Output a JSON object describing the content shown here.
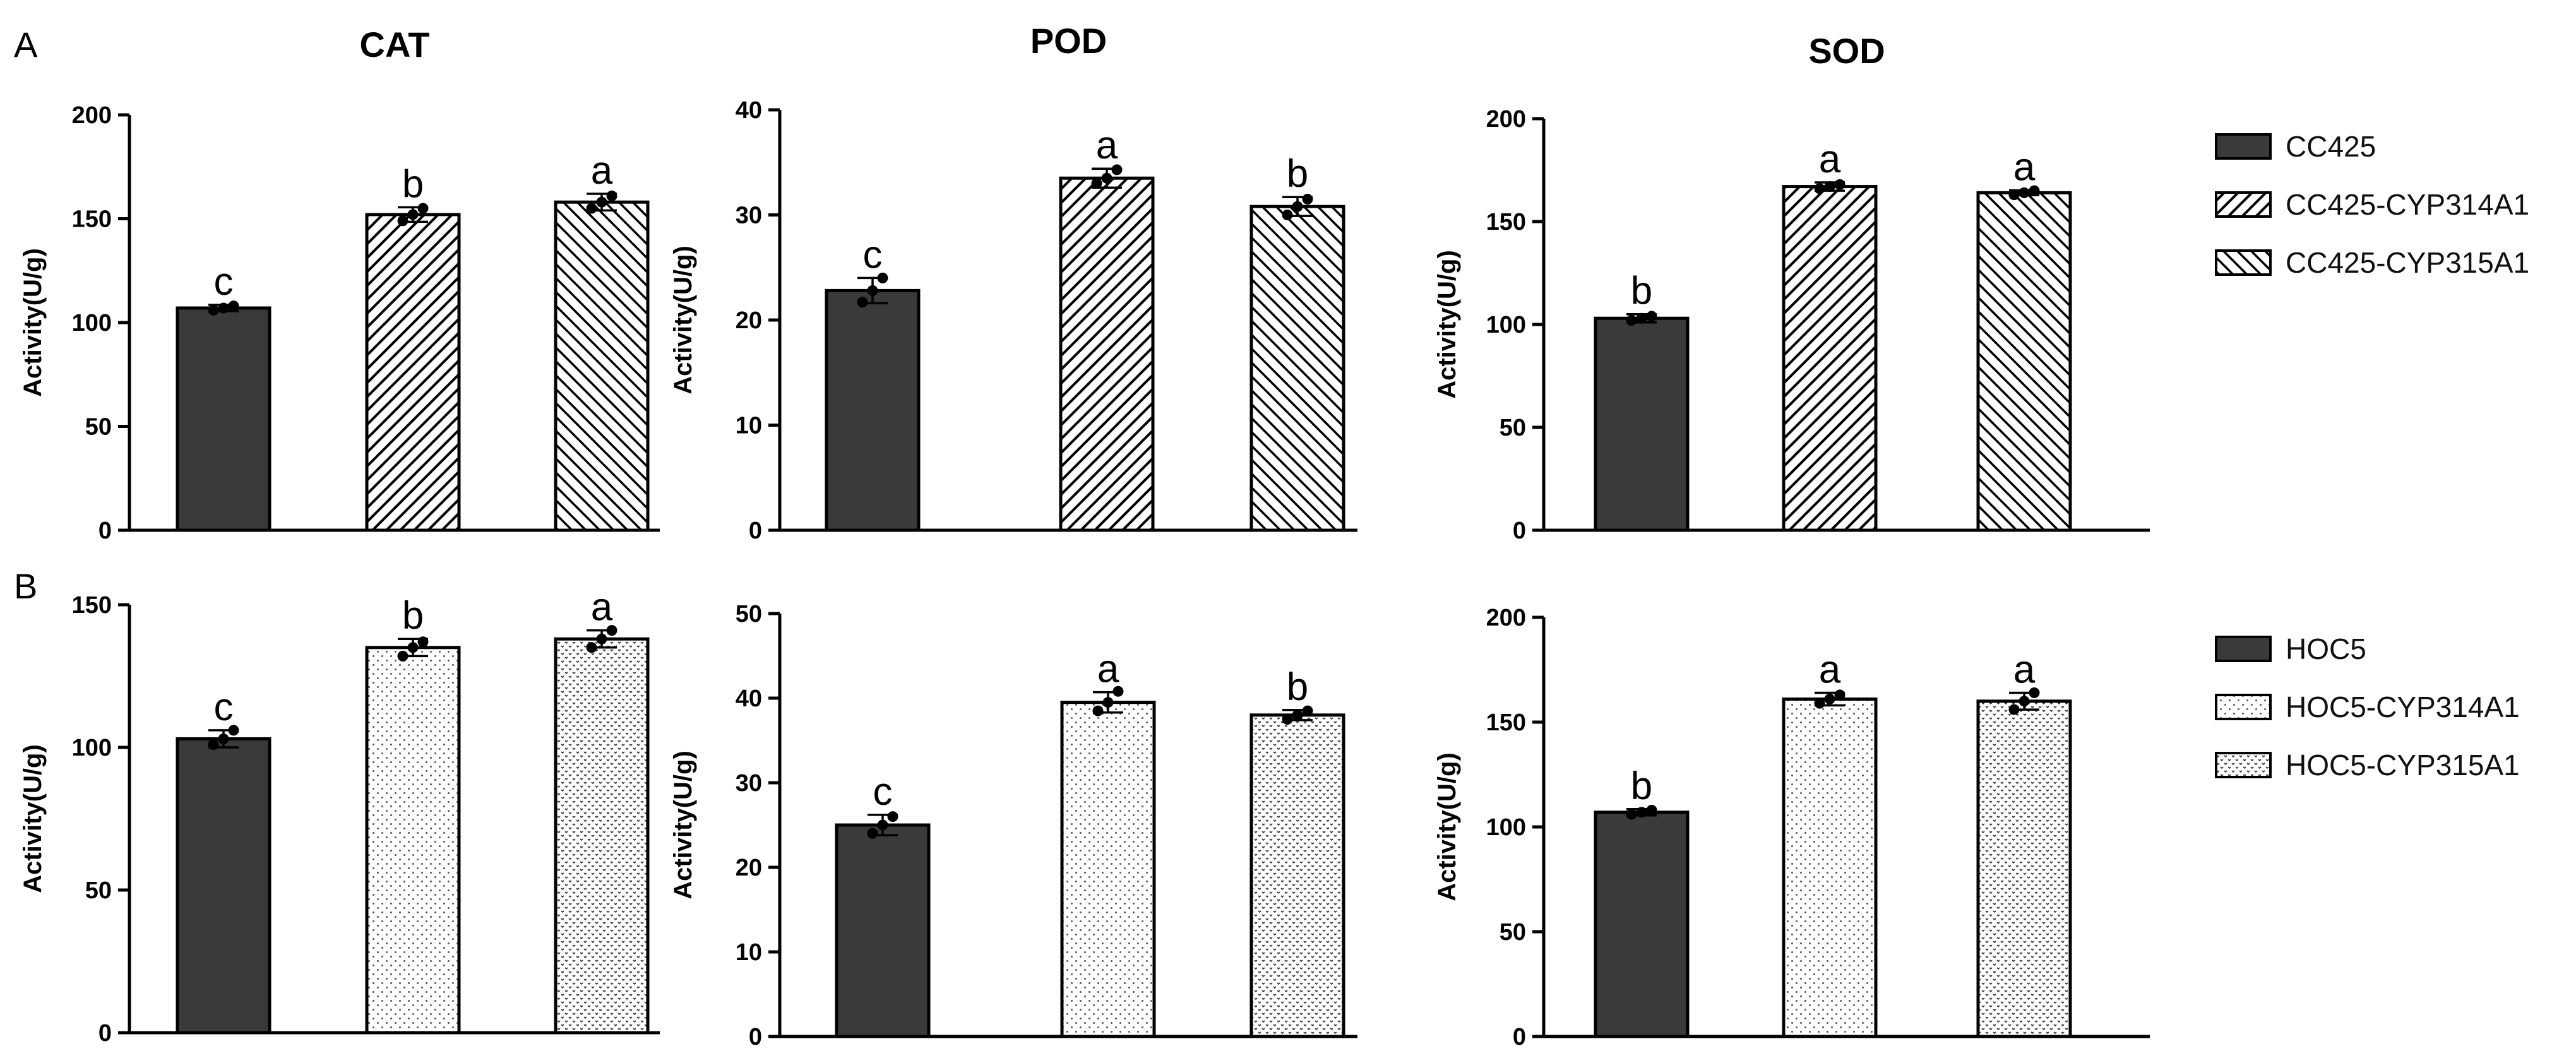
{
  "panels": [
    {
      "letter": "A"
    },
    {
      "letter": "B"
    }
  ],
  "legends": [
    {
      "entries": [
        {
          "name": "CC425",
          "pattern": "solid"
        },
        {
          "name": "CC425-CYP314A1",
          "pattern": "diag-right"
        },
        {
          "name": "CC425-CYP315A1",
          "pattern": "diag-left"
        }
      ]
    },
    {
      "entries": [
        {
          "name": "HOC5",
          "pattern": "solid"
        },
        {
          "name": "HOC5-CYP314A1",
          "pattern": "dots"
        },
        {
          "name": "HOC5-CYP315A1",
          "pattern": "dense-dots"
        }
      ]
    }
  ],
  "colors": {
    "bar_solid": "#3a3a3a",
    "stroke": "#000000",
    "background": "#ffffff"
  },
  "chart_data": [
    {
      "type": "bar",
      "panel": "A",
      "title": "CAT",
      "ylabel": "Activity(U/g)",
      "ylim": [
        0,
        200
      ],
      "yticks": [
        0,
        50,
        100,
        150,
        200
      ],
      "categories": [
        "CC425",
        "CC425-CYP314A1",
        "CC425-CYP315A1"
      ],
      "values": [
        107,
        152,
        158
      ],
      "errors": [
        1.5,
        3.5,
        4
      ],
      "letters": [
        "c",
        "b",
        "a"
      ],
      "points": [
        [
          106,
          107,
          108
        ],
        [
          149,
          152,
          155
        ],
        [
          155,
          158,
          161
        ]
      ]
    },
    {
      "type": "bar",
      "panel": "A",
      "title": "POD",
      "ylabel": "Activity(U/g)",
      "ylim": [
        0,
        40
      ],
      "yticks": [
        0,
        10,
        20,
        30,
        40
      ],
      "categories": [
        "CC425",
        "CC425-CYP314A1",
        "CC425-CYP315A1"
      ],
      "values": [
        22.8,
        33.5,
        30.8
      ],
      "errors": [
        1.2,
        0.9,
        0.9
      ],
      "letters": [
        "c",
        "a",
        "b"
      ],
      "points": [
        [
          21.7,
          22.8,
          24.0
        ],
        [
          33.0,
          33.5,
          34.3
        ],
        [
          30.0,
          30.8,
          31.5
        ]
      ]
    },
    {
      "type": "bar",
      "panel": "A",
      "title": "SOD",
      "ylabel": "Activity(U/g)",
      "ylim": [
        0,
        200
      ],
      "yticks": [
        0,
        50,
        100,
        150,
        200
      ],
      "categories": [
        "CC425",
        "CC425-CYP314A1",
        "CC425-CYP315A1"
      ],
      "values": [
        103,
        167,
        164
      ],
      "errors": [
        2,
        2,
        1.2
      ],
      "letters": [
        "b",
        "a",
        "a"
      ],
      "points": [
        [
          102,
          103,
          104
        ],
        [
          166,
          167,
          168
        ],
        [
          163,
          164,
          165
        ]
      ]
    },
    {
      "type": "bar",
      "panel": "B",
      "title": "",
      "ylabel": "Activity(U/g)",
      "ylim": [
        0,
        150
      ],
      "yticks": [
        0,
        50,
        100,
        150
      ],
      "categories": [
        "HOC5",
        "HOC5-CYP314A1",
        "HOC5-CYP315A1"
      ],
      "values": [
        103,
        135,
        138
      ],
      "errors": [
        3,
        3,
        3
      ],
      "letters": [
        "c",
        "b",
        "a"
      ],
      "points": [
        [
          101,
          103,
          106
        ],
        [
          132,
          135,
          137
        ],
        [
          135,
          138,
          141
        ]
      ]
    },
    {
      "type": "bar",
      "panel": "B",
      "title": "",
      "ylabel": "Activity(U/g)",
      "ylim": [
        0,
        50
      ],
      "yticks": [
        0,
        10,
        20,
        30,
        40,
        50
      ],
      "categories": [
        "HOC5",
        "HOC5-CYP314A1",
        "HOC5-CYP315A1"
      ],
      "values": [
        25,
        39.5,
        38
      ],
      "errors": [
        1.2,
        1.2,
        0.6
      ],
      "letters": [
        "c",
        "a",
        "b"
      ],
      "points": [
        [
          24.0,
          25.0,
          26.0
        ],
        [
          38.5,
          39.5,
          40.8
        ],
        [
          37.5,
          38.0,
          38.5
        ]
      ]
    },
    {
      "type": "bar",
      "panel": "B",
      "title": "",
      "ylabel": "Activity(U/g)",
      "ylim": [
        0,
        200
      ],
      "yticks": [
        0,
        50,
        100,
        150,
        200
      ],
      "categories": [
        "HOC5",
        "HOC5-CYP314A1",
        "HOC5-CYP315A1"
      ],
      "values": [
        107,
        161,
        160
      ],
      "errors": [
        1.5,
        3,
        4
      ],
      "letters": [
        "b",
        "a",
        "a"
      ],
      "points": [
        [
          106,
          107,
          108
        ],
        [
          159,
          161,
          163
        ],
        [
          156,
          160,
          164
        ]
      ]
    }
  ]
}
